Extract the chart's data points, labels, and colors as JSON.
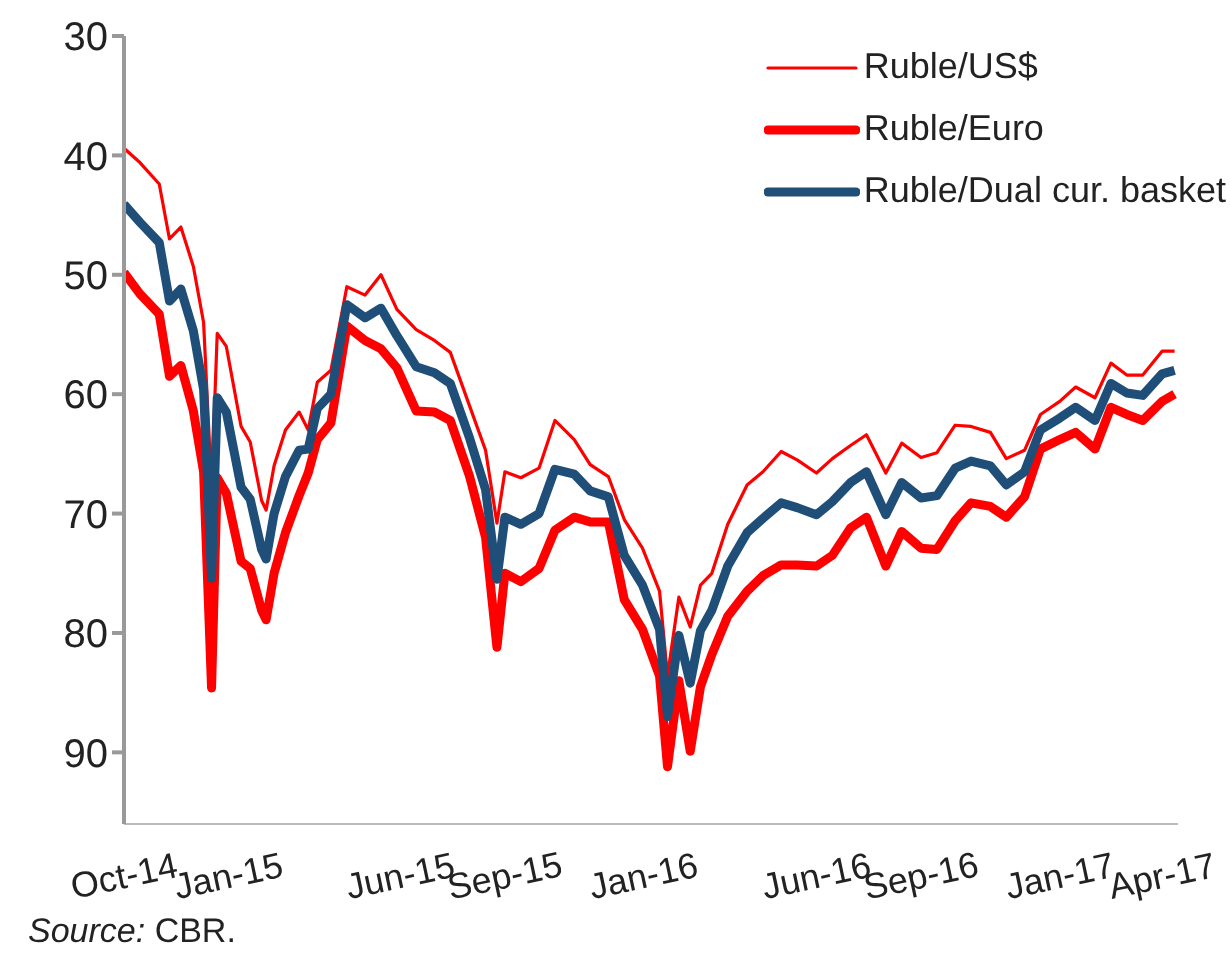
{
  "chart_data": {
    "type": "line",
    "x": [
      "2014-10-01",
      "2014-10-15",
      "2014-11-01",
      "2014-11-10",
      "2014-11-20",
      "2014-12-01",
      "2014-12-10",
      "2014-12-17",
      "2014-12-22",
      "2014-12-30",
      "2015-01-12",
      "2015-01-20",
      "2015-01-30",
      "2015-02-03",
      "2015-02-10",
      "2015-02-20",
      "2015-03-04",
      "2015-03-12",
      "2015-03-20",
      "2015-04-01",
      "2015-04-15",
      "2015-05-01",
      "2015-05-15",
      "2015-05-29",
      "2015-06-15",
      "2015-07-01",
      "2015-07-15",
      "2015-08-01",
      "2015-08-15",
      "2015-08-25",
      "2015-09-01",
      "2015-09-15",
      "2015-10-01",
      "2015-10-15",
      "2015-11-01",
      "2015-11-15",
      "2015-12-01",
      "2015-12-15",
      "2015-12-31",
      "2016-01-15",
      "2016-01-22",
      "2016-02-01",
      "2016-02-11",
      "2016-02-20",
      "2016-03-01",
      "2016-03-15",
      "2016-04-01",
      "2016-04-15",
      "2016-05-01",
      "2016-05-15",
      "2016-06-01",
      "2016-06-15",
      "2016-07-01",
      "2016-07-15",
      "2016-08-01",
      "2016-08-15",
      "2016-09-01",
      "2016-09-15",
      "2016-10-01",
      "2016-10-15",
      "2016-11-01",
      "2016-11-15",
      "2016-12-01",
      "2016-12-15",
      "2017-01-01",
      "2017-01-15",
      "2017-02-01",
      "2017-02-15",
      "2017-03-01",
      "2017-03-15",
      "2017-04-01",
      "2017-04-12"
    ],
    "series": [
      {
        "name": "Ruble/US$",
        "color": "#ff0000",
        "values": [
          39.4,
          40.6,
          42.4,
          47.0,
          46.0,
          49.3,
          54.0,
          67.8,
          54.9,
          56.0,
          62.7,
          64.0,
          68.9,
          69.7,
          66.0,
          63.0,
          61.5,
          63.0,
          59.0,
          58.0,
          51.0,
          51.7,
          50.0,
          52.9,
          54.6,
          55.5,
          56.5,
          61.0,
          64.7,
          70.8,
          66.5,
          67.0,
          66.2,
          62.2,
          63.8,
          65.9,
          66.9,
          70.5,
          72.9,
          76.5,
          83.6,
          77.0,
          79.5,
          76.0,
          75.0,
          70.9,
          67.6,
          66.5,
          64.8,
          65.5,
          66.6,
          65.4,
          64.3,
          63.4,
          66.6,
          64.1,
          65.3,
          64.9,
          62.6,
          62.7,
          63.2,
          65.4,
          64.7,
          61.7,
          60.6,
          59.4,
          60.3,
          57.4,
          58.4,
          58.4,
          56.4,
          56.4
        ]
      },
      {
        "name": "Ruble/Euro",
        "color": "#ff0000",
        "values": [
          49.8,
          51.6,
          53.3,
          58.5,
          57.6,
          61.4,
          66.5,
          84.6,
          67.0,
          68.3,
          74.0,
          74.6,
          78.1,
          78.9,
          75.0,
          71.6,
          68.5,
          66.6,
          63.8,
          62.4,
          54.3,
          55.5,
          56.2,
          57.8,
          61.4,
          61.5,
          62.2,
          66.9,
          72.0,
          81.2,
          75.0,
          75.7,
          74.6,
          71.4,
          70.3,
          70.7,
          70.7,
          77.2,
          79.7,
          83.6,
          91.2,
          84.0,
          89.9,
          84.5,
          81.8,
          78.6,
          76.5,
          75.2,
          74.3,
          74.3,
          74.4,
          73.5,
          71.2,
          70.3,
          74.4,
          71.5,
          72.9,
          73.0,
          70.6,
          69.1,
          69.4,
          70.3,
          68.6,
          64.6,
          63.8,
          63.2,
          64.6,
          61.1,
          61.7,
          62.2,
          60.6,
          60.0
        ]
      },
      {
        "name": "Ruble/Dual cur. basket",
        "color": "#1f4e79",
        "values": [
          44.1,
          45.6,
          47.3,
          52.2,
          51.2,
          54.7,
          59.6,
          75.4,
          60.3,
          61.5,
          67.8,
          68.8,
          73.0,
          73.8,
          70.0,
          66.9,
          64.7,
          64.6,
          61.2,
          60.0,
          52.5,
          53.6,
          52.8,
          55.1,
          57.7,
          58.2,
          59.1,
          63.7,
          68.0,
          75.5,
          70.3,
          70.9,
          70.0,
          66.3,
          66.7,
          68.1,
          68.6,
          73.5,
          76.0,
          79.7,
          87.0,
          80.2,
          84.2,
          79.8,
          78.1,
          74.4,
          71.6,
          70.4,
          69.1,
          69.5,
          70.1,
          69.0,
          67.4,
          66.5,
          70.1,
          67.4,
          68.7,
          68.5,
          66.2,
          65.6,
          66.0,
          67.6,
          66.5,
          63.0,
          62.0,
          61.1,
          62.2,
          59.1,
          59.9,
          60.1,
          58.3,
          58.0
        ]
      }
    ],
    "xlim": [
      "2014-10-01",
      "2017-04-15"
    ],
    "xticks": [
      {
        "value": "2014-10-01",
        "label": "Oct-14"
      },
      {
        "value": "2015-01-01",
        "label": "Jan-15"
      },
      {
        "value": "2015-06-01",
        "label": "Jun-15"
      },
      {
        "value": "2015-09-01",
        "label": "Sep-15"
      },
      {
        "value": "2016-01-01",
        "label": "Jan-16"
      },
      {
        "value": "2016-06-01",
        "label": "Jun-16"
      },
      {
        "value": "2016-09-01",
        "label": "Sep-16"
      },
      {
        "value": "2017-01-01",
        "label": "Jan-17"
      },
      {
        "value": "2017-04-01",
        "label": "Apr-17"
      }
    ],
    "ylim": [
      96,
      30
    ],
    "yticks": [
      30,
      40,
      50,
      60,
      70,
      80,
      90
    ],
    "legend": "top right",
    "grid": false,
    "marker": "none",
    "line_style": "solid",
    "annotations": [
      "Source: CBR."
    ]
  }
}
